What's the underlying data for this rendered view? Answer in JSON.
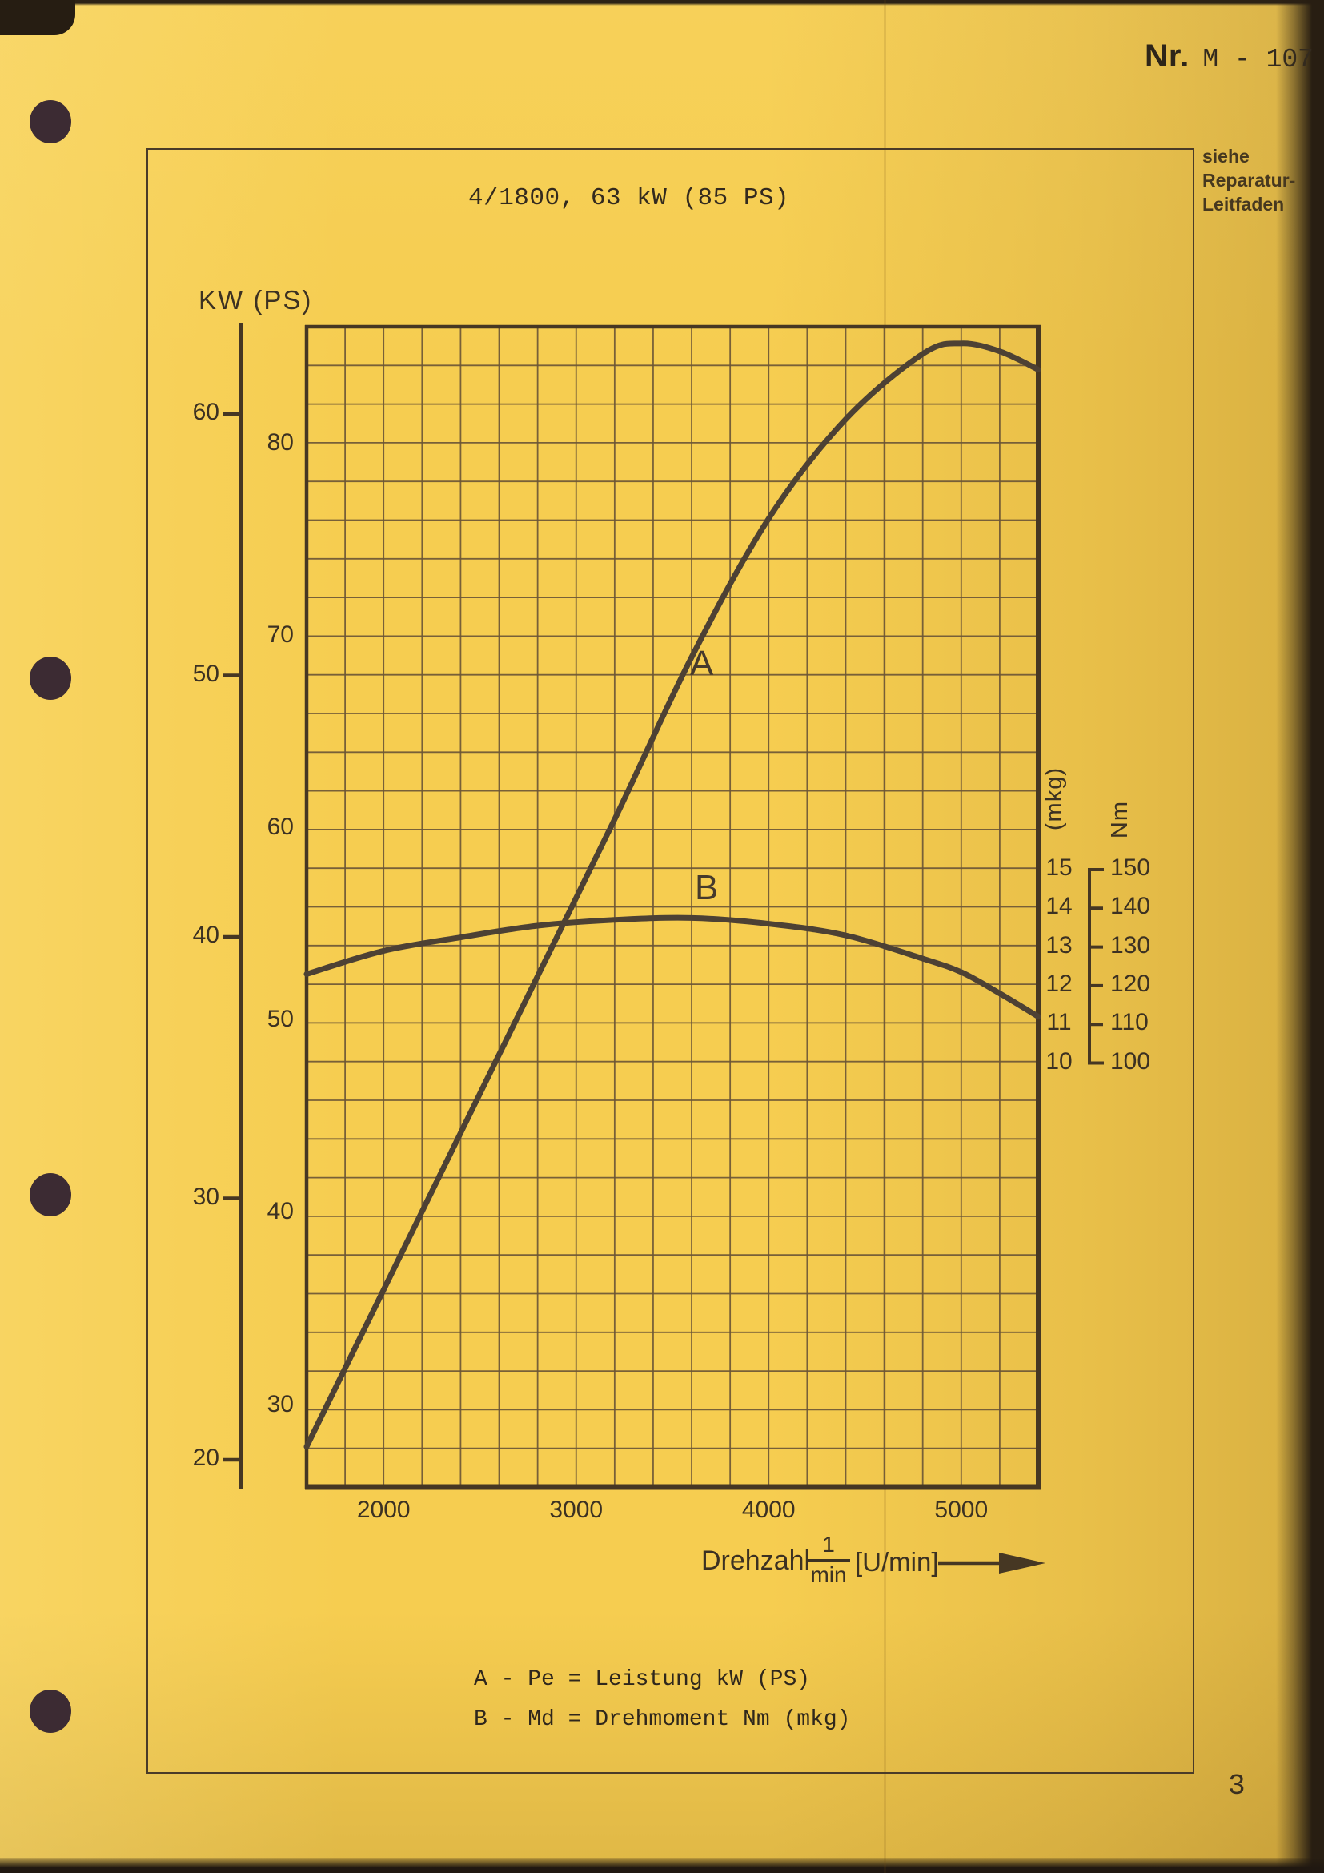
{
  "page": {
    "doc_number_prefix": "Nr.",
    "doc_number": "M - 107",
    "note_lines": [
      "siehe",
      "Reparatur-",
      "Leitfaden"
    ],
    "page_number": "3"
  },
  "chart_data": {
    "type": "line",
    "title": "4/1800, 63 kW (85 PS)",
    "x_axis": {
      "label": "Drehzahl",
      "fraction_numerator": "1",
      "fraction_denominator": "min",
      "unit": "[U/min]",
      "range_rpm": [
        1600,
        5400
      ],
      "minor_step_rpm": 200,
      "ticks": [
        "2000",
        "3000",
        "4000",
        "5000"
      ]
    },
    "y_axis_kw": {
      "label": "KW (PS)",
      "ticks": [
        "60",
        "50",
        "40",
        "30",
        "20"
      ]
    },
    "y_axis_ps": {
      "ticks": [
        "80",
        "70",
        "60",
        "50",
        "40",
        "30"
      ]
    },
    "y_axis_mkg": {
      "label": "(mkg)",
      "ticks": [
        "15",
        "14",
        "13",
        "12",
        "11",
        "10"
      ]
    },
    "y_axis_nm": {
      "label": "Nm",
      "ticks": [
        "150",
        "140",
        "130",
        "120",
        "110",
        "100"
      ]
    },
    "grid": {
      "columns": 19,
      "rows": 30
    },
    "series": [
      {
        "name": "A",
        "legend": "A - Pe = Leistung kW (PS)",
        "quantity": "Leistung (power)",
        "unit": "kW",
        "rpm": [
          1600,
          2000,
          2400,
          2800,
          3200,
          3600,
          4000,
          4400,
          4800,
          5000,
          5200,
          5400
        ],
        "kw": [
          20.5,
          26.5,
          32.5,
          38.5,
          44.5,
          50.7,
          56.0,
          59.8,
          62.3,
          62.7,
          62.4,
          61.7
        ]
      },
      {
        "name": "B",
        "legend": "B - Md = Drehmoment Nm (mkg)",
        "quantity": "Drehmoment (torque)",
        "unit": "Nm (mkg)",
        "rpm": [
          1600,
          2000,
          2400,
          2800,
          3200,
          3600,
          4000,
          4400,
          4800,
          5000,
          5200,
          5400
        ],
        "mkg": [
          12.3,
          12.9,
          13.25,
          13.55,
          13.7,
          13.75,
          13.6,
          13.3,
          12.7,
          12.35,
          11.8,
          11.2
        ],
        "nm": [
          121,
          127,
          130,
          133,
          134,
          135,
          133,
          130,
          125,
          121,
          116,
          110
        ]
      }
    ]
  },
  "colors": {
    "paper": "#f6cd50",
    "ink": "#372d20",
    "grid_line": "#6b5536",
    "frame": "#463723",
    "curve": "#4d4134",
    "hole": "#3c2b33"
  }
}
